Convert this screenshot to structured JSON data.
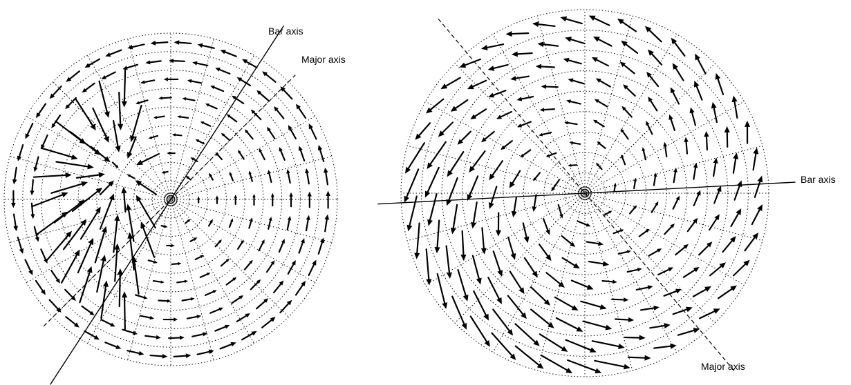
{
  "panels": [
    {
      "id": "left",
      "bar_axis_label": "Bar axis",
      "major_axis_label": "Major axis",
      "rings": 9,
      "spokes": 24,
      "bar_axis_angle_deg": 57,
      "major_axis_angle_deg": 45,
      "flow": "ring"
    },
    {
      "id": "right",
      "bar_axis_label": "Bar axis",
      "major_axis_label": "Major axis",
      "rings": 9,
      "spokes": 24,
      "bar_axis_angle_deg": 3,
      "major_axis_angle_deg": -50,
      "flow": "spiral"
    }
  ],
  "colors": {
    "ink": "#000000",
    "background": "#ffffff"
  }
}
